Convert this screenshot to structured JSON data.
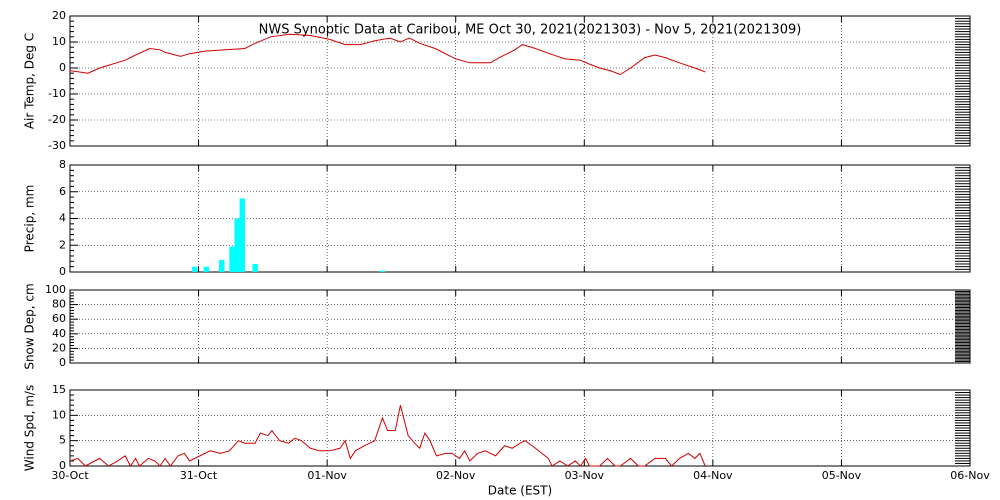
{
  "title": "NWS Synoptic Data at Caribou, ME   Oct 30, 2021(2021303) - Nov  5, 2021(2021309)",
  "x_axis": {
    "label": "Date (EST)",
    "xlim": [
      0,
      7
    ],
    "xticks": [
      {
        "value": 0,
        "label": "30-Oct"
      },
      {
        "value": 1,
        "label": "31-Oct"
      },
      {
        "value": 2,
        "label": "01-Nov"
      },
      {
        "value": 3,
        "label": "02-Nov"
      },
      {
        "value": 4,
        "label": "03-Nov"
      },
      {
        "value": 5,
        "label": "04-Nov"
      },
      {
        "value": 6,
        "label": "05-Nov"
      },
      {
        "value": 7,
        "label": "06-Nov"
      }
    ]
  },
  "chart_data": [
    {
      "type": "line",
      "ylabel": "Air Temp, Deg C",
      "ylim": [
        -30,
        20
      ],
      "yticks": [
        -30,
        -20,
        -10,
        0,
        10,
        20
      ],
      "grid": true,
      "series": [
        {
          "color": "#d00000",
          "x": [
            0,
            0.14,
            0.23,
            0.43,
            0.51,
            0.62,
            0.7,
            0.74,
            0.86,
            0.93,
            1.05,
            1.21,
            1.36,
            1.44,
            1.56,
            1.71,
            1.87,
            2.02,
            2.14,
            2.26,
            2.37,
            2.49,
            2.57,
            2.64,
            2.72,
            2.84,
            2.96,
            3.0,
            3.11,
            3.27,
            3.34,
            3.46,
            3.52,
            3.62,
            3.73,
            3.85,
            3.97,
            4.04,
            4.12,
            4.2,
            4.28,
            4.36,
            4.47,
            4.55,
            4.63,
            4.74,
            4.86,
            4.94
          ],
          "values": [
            -1,
            -2,
            0,
            3,
            5,
            7.5,
            7,
            6,
            4.5,
            5.5,
            6.5,
            7,
            7.5,
            9.5,
            12,
            13,
            12.5,
            11,
            9,
            9,
            10.5,
            11.5,
            10,
            11.5,
            9.5,
            7.5,
            4.5,
            3.5,
            2,
            2,
            4,
            7,
            9,
            7.5,
            5.5,
            3.5,
            3,
            1.5,
            0,
            -1,
            -2.5,
            0,
            4,
            5,
            4,
            2,
            0,
            -1.5
          ]
        }
      ]
    },
    {
      "type": "bar",
      "ylabel": "Precip, mm",
      "ylim": [
        0,
        8
      ],
      "yticks": [
        0,
        2,
        4,
        6,
        8
      ],
      "grid": true,
      "series": [
        {
          "color": "#00ffff",
          "x": [
            0.97,
            1.06,
            1.18,
            1.26,
            1.3,
            1.34,
            1.44,
            2.43
          ],
          "values": [
            0.4,
            0.4,
            0.9,
            1.9,
            4.0,
            5.5,
            0.6,
            0.1
          ]
        }
      ]
    },
    {
      "type": "line",
      "ylabel": "Snow Dep, cm",
      "ylim": [
        0,
        100
      ],
      "yticks": [
        0,
        20,
        40,
        60,
        80,
        100
      ],
      "grid": true
    },
    {
      "type": "line",
      "ylabel": "Wind Spd, m/s",
      "ylim": [
        0,
        15
      ],
      "yticks": [
        0,
        5,
        10,
        15
      ],
      "grid": true,
      "series": [
        {
          "color": "#d00000",
          "x": [
            0,
            0.06,
            0.12,
            0.23,
            0.3,
            0.37,
            0.43,
            0.47,
            0.51,
            0.54,
            0.61,
            0.66,
            0.7,
            0.74,
            0.78,
            0.84,
            0.89,
            0.93,
            1.01,
            1.09,
            1.17,
            1.24,
            1.31,
            1.36,
            1.44,
            1.48,
            1.54,
            1.57,
            1.63,
            1.7,
            1.75,
            1.8,
            1.87,
            1.94,
            2.02,
            2.1,
            2.14,
            2.18,
            2.22,
            2.29,
            2.37,
            2.43,
            2.47,
            2.53,
            2.57,
            2.63,
            2.68,
            2.72,
            2.76,
            2.8,
            2.85,
            2.92,
            2.97,
            3.03,
            3.07,
            3.11,
            3.17,
            3.23,
            3.31,
            3.38,
            3.44,
            3.5,
            3.54,
            3.62,
            3.72,
            3.75,
            3.81,
            3.87,
            3.93,
            3.97,
            4.01,
            4.04,
            4.12,
            4.18,
            4.24,
            4.28,
            4.36,
            4.42,
            4.47,
            4.55,
            4.63,
            4.68,
            4.74,
            4.81,
            4.86,
            4.9,
            4.94
          ],
          "values": [
            1,
            1.5,
            0,
            1.5,
            0,
            1,
            2,
            0,
            1.5,
            0,
            1.5,
            1,
            0,
            1.5,
            0,
            2,
            2.5,
            1,
            2,
            3,
            2.5,
            3,
            5,
            4.5,
            4.5,
            6.5,
            6,
            7,
            5,
            4.5,
            5.5,
            5,
            3.5,
            3,
            3,
            3.5,
            5,
            1.5,
            3,
            4,
            5,
            9.5,
            7,
            7,
            12,
            6,
            4.5,
            3.5,
            6.5,
            5,
            2,
            2.5,
            2.5,
            1.5,
            3,
            1,
            2.5,
            3,
            2,
            4,
            3.5,
            4.5,
            5,
            3.5,
            1.5,
            0,
            1,
            0,
            1,
            0,
            1.5,
            0,
            0,
            1.5,
            0,
            0,
            1.5,
            0,
            0,
            1.5,
            1.5,
            0,
            1.5,
            2.5,
            1.5,
            2.5,
            0
          ]
        }
      ]
    }
  ]
}
